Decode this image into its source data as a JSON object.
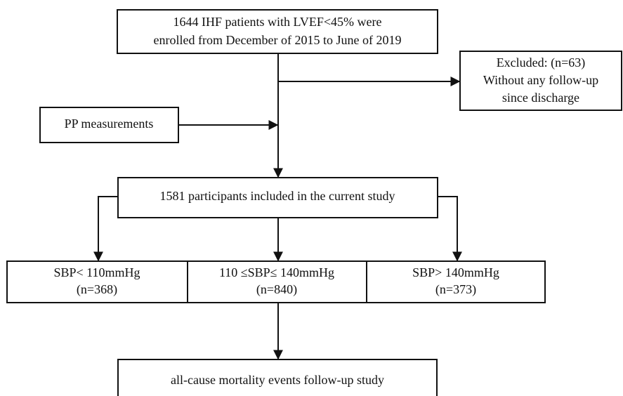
{
  "nodes": [
    {
      "lines": [
        "1644 IHF patients with LVEF<45% were",
        "enrolled from December of 2015 to June of 2019"
      ]
    },
    {
      "lines": [
        "Excluded: (n=63)",
        "Without any follow-up",
        "since discharge"
      ]
    },
    {
      "lines": [
        "PP measurements"
      ]
    },
    {
      "lines": [
        "1581 participants included in the current study"
      ]
    },
    {
      "lines": [
        "SBP< 110mmHg",
        "(n=368)"
      ]
    },
    {
      "lines": [
        "110 ≤SBP≤ 140mmHg",
        "(n=840)"
      ]
    },
    {
      "lines": [
        "SBP> 140mmHg",
        "(n=373)"
      ]
    },
    {
      "lines": [
        "all-cause mortality events follow-up study"
      ]
    }
  ]
}
